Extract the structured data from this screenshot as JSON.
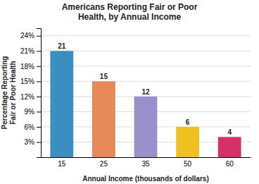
{
  "chart_data": {
    "type": "bar",
    "title": "Americans Reporting Fair or Poor\nHealth, by Annual Income",
    "xlabel": "Annual Income (thousands of dollars)",
    "ylabel": "Percentage Reporting\nFair or Poor Health",
    "categories": [
      "15",
      "25",
      "35",
      "50",
      "60"
    ],
    "values": [
      21,
      15,
      12,
      6,
      4
    ],
    "colors": [
      "#3a8fc0",
      "#e8895a",
      "#9b8fcc",
      "#f0c020",
      "#d63068"
    ],
    "ylim": [
      0,
      25.5
    ],
    "yticks": [
      {
        "value": 3,
        "label": "3%"
      },
      {
        "value": 6,
        "label": "6%"
      },
      {
        "value": 9,
        "label": "9%"
      },
      {
        "value": 12,
        "label": "12%"
      },
      {
        "value": 15,
        "label": "15%"
      },
      {
        "value": 18,
        "label": "18%"
      },
      {
        "value": 21,
        "label": "21%"
      },
      {
        "value": 24,
        "label": "24%"
      }
    ],
    "grid": true,
    "data_labels": true
  }
}
